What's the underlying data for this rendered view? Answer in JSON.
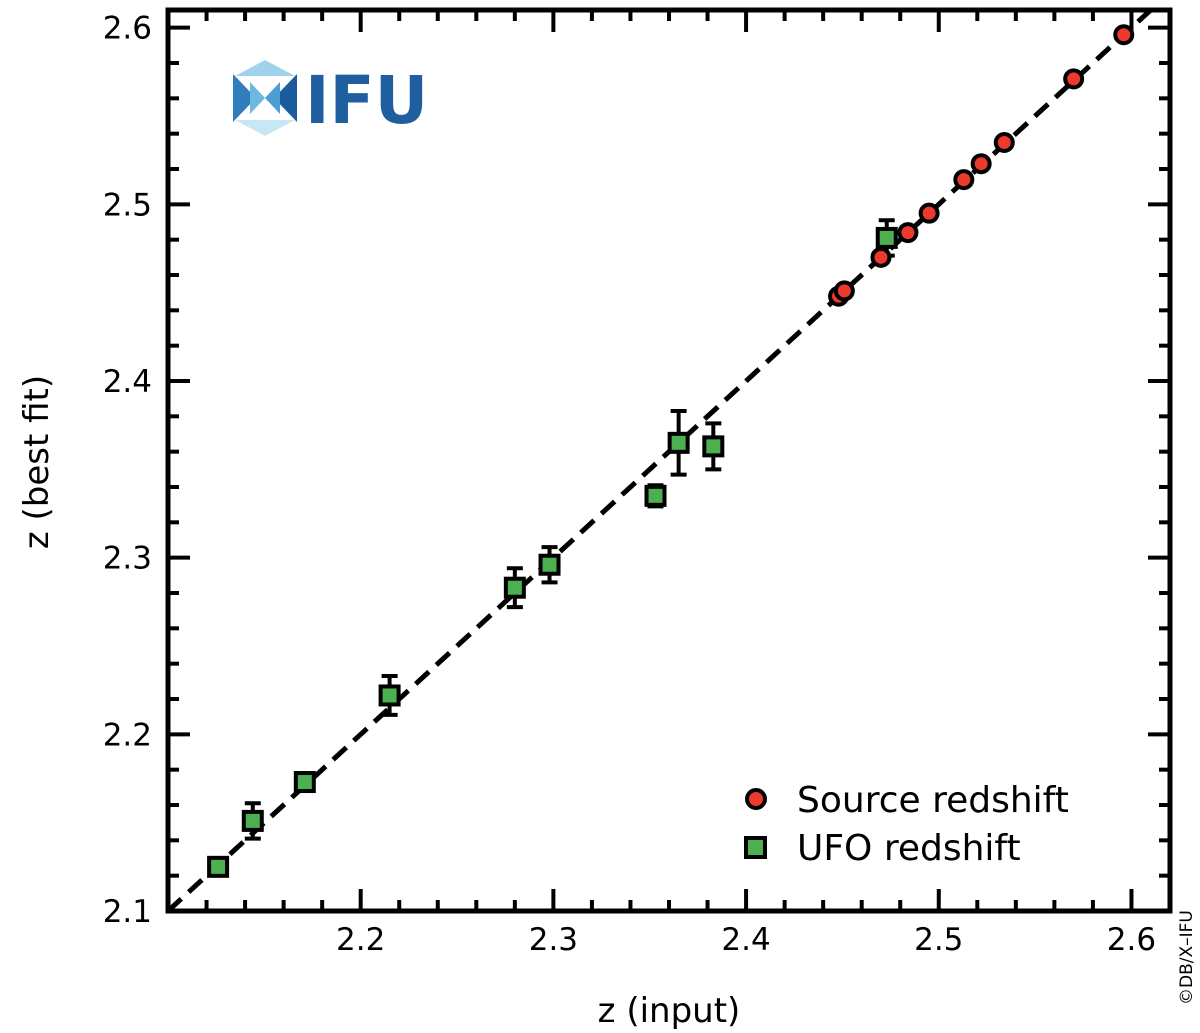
{
  "chart_data": {
    "type": "scatter",
    "title": "",
    "xlabel": "z (input)",
    "ylabel": "z (best fit)",
    "xlim": [
      2.1,
      2.62
    ],
    "ylim": [
      2.1,
      2.61
    ],
    "xticks": [
      2.2,
      2.3,
      2.4,
      2.5,
      2.6
    ],
    "xtick_labels": [
      "2.2",
      "2.3",
      "2.4",
      "2.5",
      "2.6"
    ],
    "yticks": [
      2.1,
      2.2,
      2.3,
      2.4,
      2.5,
      2.6
    ],
    "ytick_labels": [
      "2.1",
      "2.2",
      "2.3",
      "2.4",
      "2.5",
      "2.6"
    ],
    "grid": false,
    "legend_position": "bottom-right",
    "reference_line": {
      "style": "dashed",
      "color": "#000000",
      "relation": "y = x"
    },
    "series": [
      {
        "name": "Source redshift",
        "marker": "circle",
        "color": "#ee3a2c",
        "points": [
          {
            "x": 2.448,
            "y": 2.448
          },
          {
            "x": 2.451,
            "y": 2.451
          },
          {
            "x": 2.47,
            "y": 2.47
          },
          {
            "x": 2.484,
            "y": 2.484
          },
          {
            "x": 2.495,
            "y": 2.495
          },
          {
            "x": 2.513,
            "y": 2.514
          },
          {
            "x": 2.522,
            "y": 2.523
          },
          {
            "x": 2.534,
            "y": 2.535
          },
          {
            "x": 2.57,
            "y": 2.571
          },
          {
            "x": 2.596,
            "y": 2.596
          }
        ]
      },
      {
        "name": "UFO redshift",
        "marker": "square",
        "color": "#4caf50",
        "points": [
          {
            "x": 2.126,
            "y": 2.125,
            "err": 0.004
          },
          {
            "x": 2.144,
            "y": 2.151,
            "err": 0.01
          },
          {
            "x": 2.171,
            "y": 2.173,
            "err": 0.004
          },
          {
            "x": 2.215,
            "y": 2.222,
            "err": 0.011
          },
          {
            "x": 2.28,
            "y": 2.283,
            "err": 0.011
          },
          {
            "x": 2.298,
            "y": 2.296,
            "err": 0.01
          },
          {
            "x": 2.353,
            "y": 2.335,
            "err": 0.006
          },
          {
            "x": 2.365,
            "y": 2.365,
            "err": 0.018
          },
          {
            "x": 2.383,
            "y": 2.363,
            "err": 0.013
          },
          {
            "x": 2.473,
            "y": 2.481,
            "err": 0.01
          }
        ]
      }
    ]
  },
  "logo": {
    "text": "IFU"
  },
  "credit": "©DB/X–IFU"
}
